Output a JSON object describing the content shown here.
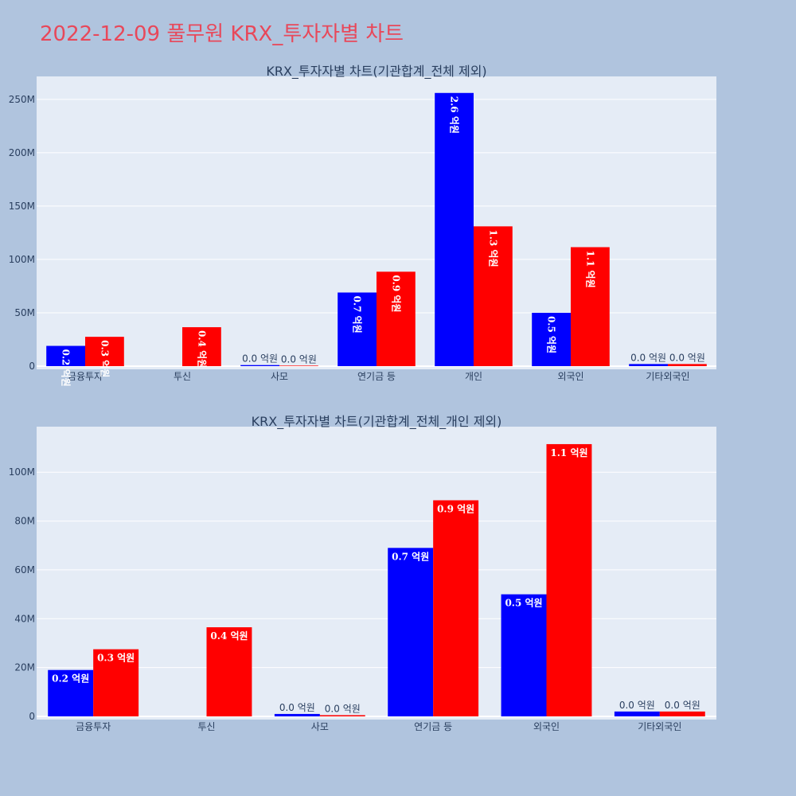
{
  "page": {
    "title": "2022-12-09 풀무원 KRX_투자자별 차트"
  },
  "colors": {
    "buy": "#0000ff",
    "sell": "#ff0000",
    "title": "#e8485a"
  },
  "chart_data": [
    {
      "type": "bar",
      "title": "KRX_투자자별 차트(기관합계_전체 제외)",
      "categories": [
        "금융투자",
        "투신",
        "사모",
        "연기금 등",
        "개인",
        "외국인",
        "기타외국인"
      ],
      "ylim": [
        0,
        270000000
      ],
      "yticks": [
        0,
        50000000,
        100000000,
        150000000,
        200000000,
        250000000
      ],
      "ytick_labels": [
        "0",
        "50M",
        "100M",
        "150M",
        "200M",
        "250M"
      ],
      "series": [
        {
          "color": "#0000ff",
          "values": [
            19000000,
            0,
            1000000,
            69000000,
            256000000,
            50000000,
            2000000
          ],
          "labels": [
            "0.2 억원",
            "",
            "0.0 억원",
            "0.7 억원",
            "2.6 억원",
            "0.5 억원",
            "0.0 억원"
          ]
        },
        {
          "color": "#ff0000",
          "values": [
            27500000,
            36500000,
            500000,
            88500000,
            131000000,
            111500000,
            2000000
          ],
          "labels": [
            "0.3 억원",
            "0.4 억원",
            "0.0 억원",
            "0.9 억원",
            "1.3 억원",
            "1.1 억원",
            "0.0 억원"
          ]
        }
      ],
      "grid": true,
      "legend": "none"
    },
    {
      "type": "bar",
      "title": "KRX_투자자별 차트(기관합계_전체_개인 제외)",
      "categories": [
        "금융투자",
        "투신",
        "사모",
        "연기금 등",
        "외국인",
        "기타외국인"
      ],
      "ylim": [
        0,
        118000000
      ],
      "yticks": [
        0,
        20000000,
        40000000,
        60000000,
        80000000,
        100000000
      ],
      "ytick_labels": [
        "0",
        "20M",
        "40M",
        "60M",
        "80M",
        "100M"
      ],
      "series": [
        {
          "color": "#0000ff",
          "values": [
            19000000,
            0,
            1000000,
            69000000,
            50000000,
            2000000
          ],
          "labels": [
            "0.2 억원",
            "",
            "0.0 억원",
            "0.7 억원",
            "0.5 억원",
            "0.0 억원"
          ]
        },
        {
          "color": "#ff0000",
          "values": [
            27500000,
            36500000,
            500000,
            88500000,
            111500000,
            2000000
          ],
          "labels": [
            "0.3 억원",
            "0.4 억원",
            "0.0 억원",
            "0.9 억원",
            "1.1 억원",
            "0.0 억원"
          ]
        }
      ],
      "grid": true,
      "legend": "none"
    }
  ]
}
